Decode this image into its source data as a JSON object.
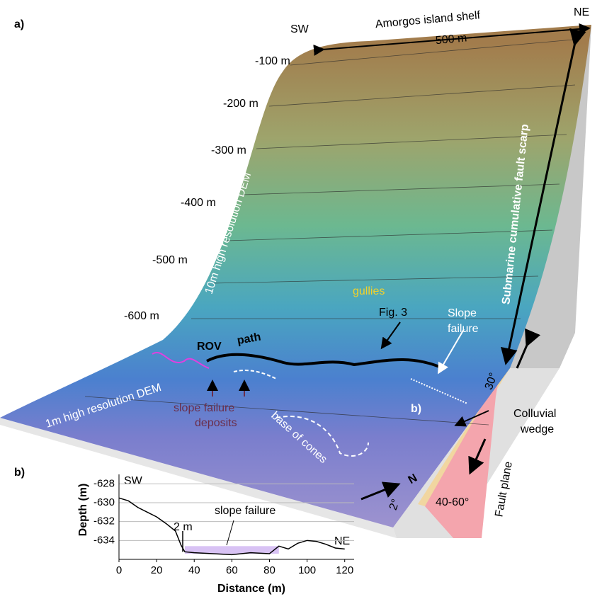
{
  "panel_a": {
    "label": "a)",
    "sw": "SW",
    "ne": "NE",
    "shelf": "Amorgos island shelf",
    "scale": "500 m",
    "depths": [
      "-100 m",
      "-200 m",
      "-300 m",
      "-400 m",
      "-500 m",
      "-600 m"
    ],
    "dem10": "10m high resolution DEM",
    "dem1": "1m high resolution DEM",
    "gullies": "gullies",
    "fig3": "Fig. 3",
    "slope_failure": [
      "Slope",
      "failure"
    ],
    "rov": [
      "ROV",
      "path"
    ],
    "deposits": [
      "slope failure",
      "deposits"
    ],
    "cones": "base of cones",
    "b": "b)",
    "scarp": "Submarine cumulative fault scarp",
    "angle30": "30°",
    "wedge": [
      "Colluvial",
      "wedge"
    ],
    "fault_plane": "Fault plane",
    "angle4060": "40-60°",
    "north": "N",
    "angle2": "2°"
  },
  "chart_data": {
    "type": "line",
    "title": "b)",
    "xlabel": "Distance (m)",
    "ylabel": "Depth (m)",
    "annotations": [
      "SW",
      "NE",
      "slope failure",
      "2 m"
    ],
    "x": [
      0,
      5,
      10,
      15,
      20,
      25,
      30,
      33,
      35,
      40,
      50,
      60,
      70,
      80,
      85,
      90,
      95,
      100,
      105,
      110,
      115,
      120
    ],
    "series": [
      {
        "name": "Depth",
        "color": "#000000",
        "values": [
          -629.5,
          -629.8,
          -630.5,
          -631,
          -631.5,
          -632.2,
          -633,
          -634.5,
          -635.2,
          -635.3,
          -635.4,
          -635.5,
          -635.3,
          -635.4,
          -634.6,
          -634.9,
          -634.3,
          -634,
          -634.1,
          -634.4,
          -634.8,
          -634.9
        ]
      }
    ],
    "xlim": [
      0,
      125
    ],
    "xticks": [
      0,
      20,
      40,
      60,
      80,
      100,
      120
    ],
    "ylim": [
      -636,
      -627
    ],
    "yticks": [
      -628,
      -630,
      -632,
      -634
    ],
    "grid": true
  }
}
